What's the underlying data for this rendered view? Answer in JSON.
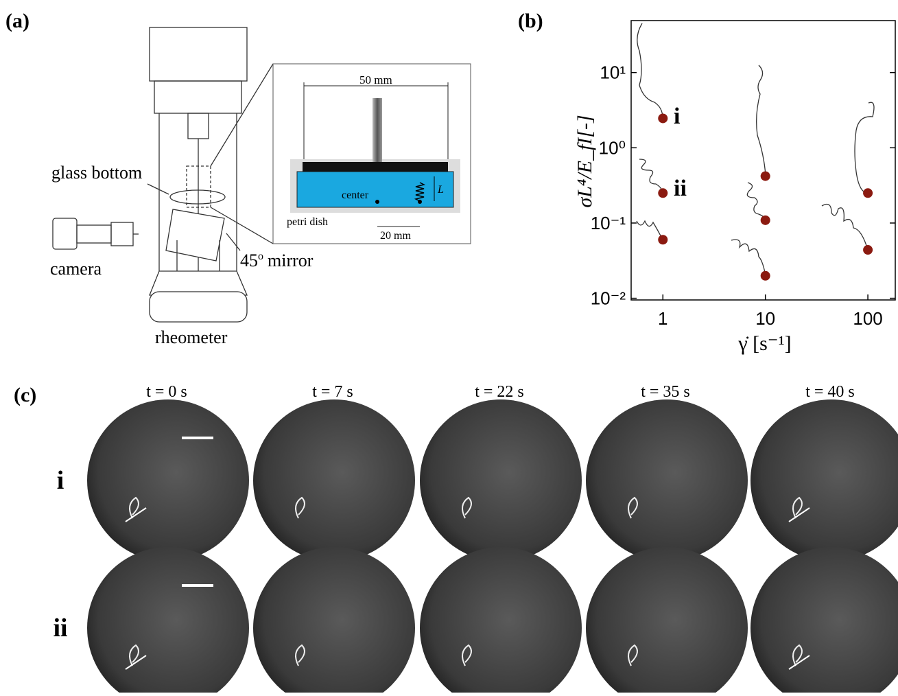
{
  "panel_a": {
    "label": "(a)",
    "glass_bottom": "glass bottom",
    "camera": "camera",
    "rheometer": "rheometer",
    "mirror_angle": "45",
    "mirror_degree": "o",
    "mirror": "mirror",
    "inset": {
      "width": "50 mm",
      "center": "center",
      "length": "L",
      "petri_dish": "petri dish",
      "offset": "20 mm"
    }
  },
  "panel_b": {
    "label": "(b)",
    "type": "scatter",
    "xlabel": "γ̇ [s⁻¹]",
    "ylabel": "σL⁴/E_fI[-]",
    "xscale": "log",
    "yscale": "log",
    "xlim": [
      0.49,
      185
    ],
    "ylim": [
      0.0095,
      49
    ],
    "xticks": [
      1,
      10,
      100
    ],
    "yticks": [
      {
        "value": 0.01,
        "label": "10⁻²"
      },
      {
        "value": 0.1,
        "label": "10⁻¹"
      },
      {
        "value": 1,
        "label": "10⁰"
      },
      {
        "value": 10,
        "label": "10¹"
      }
    ],
    "color": "#8b1a10",
    "x": [
      1,
      1,
      1,
      10,
      10,
      10,
      100,
      100
    ],
    "y": [
      2.46,
      0.25,
      0.06,
      0.42,
      0.109,
      0.0199,
      0.25,
      0.044
    ],
    "annotations": [
      {
        "text": "i",
        "x": 1,
        "y": 2.46
      },
      {
        "text": "ii",
        "x": 1,
        "y": 0.25
      }
    ]
  },
  "panel_c": {
    "label": "(c)",
    "times": [
      "t = 0 s",
      "t = 7 s",
      "t = 22 s",
      "t = 35 s",
      "t = 40 s"
    ],
    "rows": [
      "i",
      "ii"
    ]
  }
}
